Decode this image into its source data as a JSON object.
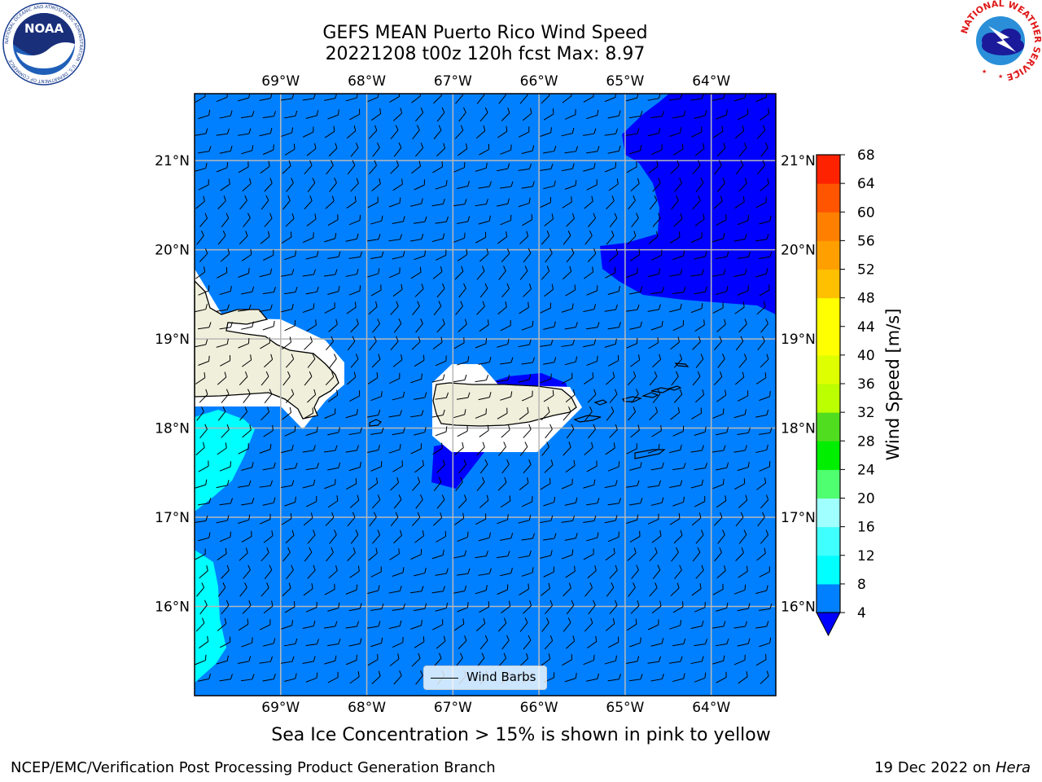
{
  "header": {
    "title_line1": "GEFS MEAN Puerto Rico Wind Speed",
    "title_line2": "20221208 t00z 120h fcst   Max: 8.97"
  },
  "logos": {
    "noaa": {
      "text": "NOAA",
      "ring_text": "NATIONAL OCEANIC AND ATMOSPHERIC ADMINISTRATION · U.S. DEPARTMENT OF COMMERCE"
    },
    "nws": {
      "ring_text": "NATIONAL WEATHER SERVICE"
    }
  },
  "map": {
    "extent": {
      "lon_min": -70.0,
      "lon_max": -63.25,
      "lat_min": 15.0,
      "lat_max": 21.75
    },
    "lon_ticks": [
      {
        "value": -69,
        "label": "69°W"
      },
      {
        "value": -68,
        "label": "68°W"
      },
      {
        "value": -67,
        "label": "67°W"
      },
      {
        "value": -66,
        "label": "66°W"
      },
      {
        "value": -65,
        "label": "65°W"
      },
      {
        "value": -64,
        "label": "64°W"
      }
    ],
    "lat_ticks": [
      {
        "value": 21,
        "label": "21°N"
      },
      {
        "value": 20,
        "label": "20°N"
      },
      {
        "value": 19,
        "label": "19°N"
      },
      {
        "value": 18,
        "label": "18°N"
      },
      {
        "value": 17,
        "label": "17°N"
      },
      {
        "value": 16,
        "label": "16°N"
      }
    ],
    "background_fill": "#0080ff",
    "land_color": "#efefdb",
    "legend_label": "Wind Barbs"
  },
  "colorbar": {
    "title": "Wind Speed [m/s]",
    "levels": [
      4,
      8,
      12,
      16,
      20,
      24,
      28,
      32,
      36,
      40,
      44,
      48,
      52,
      56,
      60,
      64,
      68
    ],
    "colors": [
      "#0080ff",
      "#00ffff",
      "#40ffff",
      "#a0ffff",
      "#50ff70",
      "#00ee00",
      "#50dd20",
      "#bbff00",
      "#ddff00",
      "#ffff00",
      "#ffff00",
      "#ffc000",
      "#ffa000",
      "#ff8000",
      "#ff5500",
      "#ff2200"
    ],
    "under_color": "#0000ff"
  },
  "footer": {
    "caption": "Sea Ice Concentration > 15% is shown in pink to yellow",
    "credit_left": "NCEP/EMC/Verification Post Processing Product Generation Branch",
    "credit_right_date": "19 Dec 2022 on ",
    "credit_right_host": "Hera"
  }
}
